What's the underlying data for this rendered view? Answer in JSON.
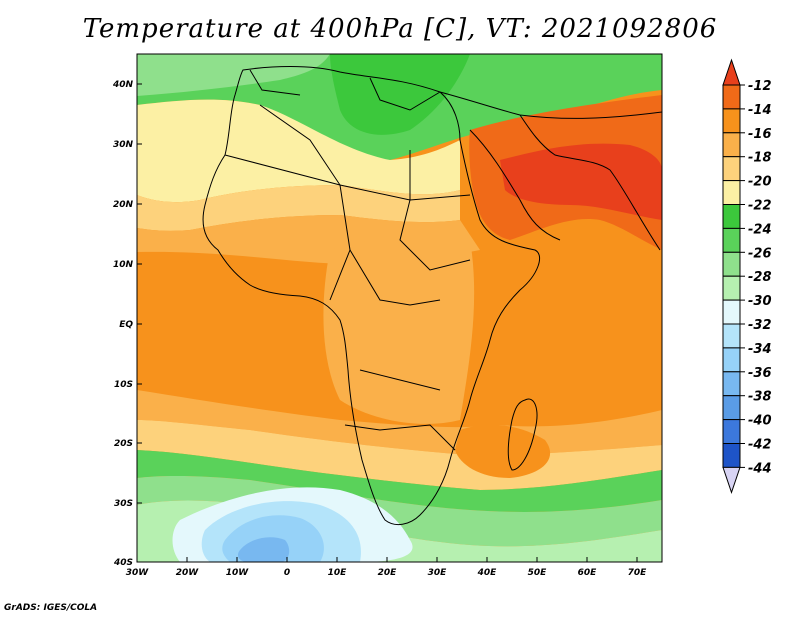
{
  "title": "Temperature at 400hPa [C], VT: 2021092806",
  "credit": "GrADS: IGES/COLA",
  "map": {
    "lat_labels": [
      "40N",
      "30N",
      "20N",
      "10N",
      "EQ",
      "10S",
      "20S",
      "30S",
      "40S"
    ],
    "lon_labels": [
      "30W",
      "20W",
      "10W",
      "0",
      "10E",
      "20E",
      "30E",
      "40E",
      "50E",
      "60E",
      "70E"
    ],
    "lat_range": [
      -40,
      45
    ],
    "lon_range": [
      -30,
      75
    ]
  },
  "colorbar": {
    "labels": [
      "-12",
      "-14",
      "-16",
      "-18",
      "-20",
      "-22",
      "-24",
      "-26",
      "-28",
      "-30",
      "-32",
      "-34",
      "-36",
      "-38",
      "-40",
      "-42",
      "-44"
    ],
    "colors": [
      "#e8401c",
      "#f06a18",
      "#f7921c",
      "#fab04a",
      "#fdd27c",
      "#fcf0a4",
      "#3cc83c",
      "#5ad25a",
      "#8fe08c",
      "#b6f0b0",
      "#e4f8fc",
      "#b4e4fa",
      "#96d2f8",
      "#78b8f0",
      "#5a9ce6",
      "#3c78dc",
      "#1e54c8",
      "#0a2896",
      "#d8d4f4"
    ]
  }
}
